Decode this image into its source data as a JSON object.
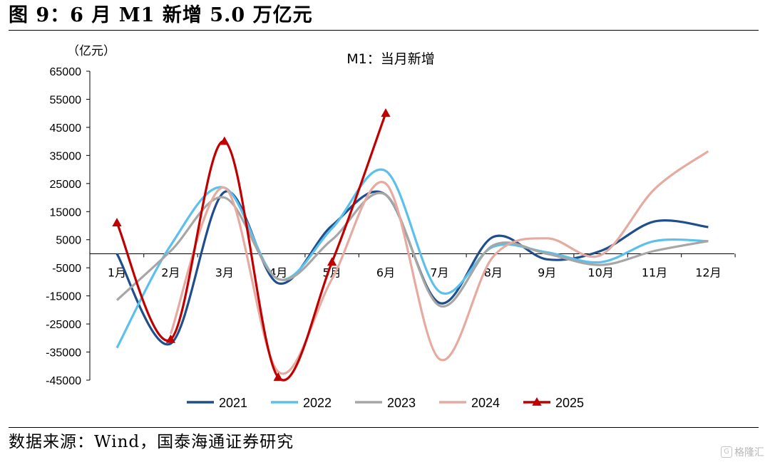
{
  "figure_title": "图 9：6 月 M1 新增 5.0 万亿元",
  "source_note": "数据来源：Wind，国泰海通证券研究",
  "watermark": "格隆汇",
  "chart_data": {
    "type": "line",
    "title": "M1：当月新增",
    "ylabel": "（亿元）",
    "xlabel": "",
    "ylim": [
      -45000,
      65000
    ],
    "yticks": [
      65000,
      55000,
      45000,
      35000,
      25000,
      15000,
      5000,
      -5000,
      -15000,
      -25000,
      -35000,
      -45000
    ],
    "categories": [
      "1月",
      "2月",
      "3月",
      "4月",
      "5月",
      "6月",
      "7月",
      "8月",
      "9月",
      "10月",
      "11月",
      "12月"
    ],
    "legend_position": "bottom",
    "grid": false,
    "series": [
      {
        "name": "2021",
        "color": "#1f4e8c",
        "marker": "none",
        "values": [
          0,
          -32000,
          22000,
          -10500,
          10000,
          21000,
          -17500,
          6000,
          -2000,
          1000,
          11500,
          9500
        ]
      },
      {
        "name": "2022",
        "color": "#5bc0eb",
        "marker": "none",
        "values": [
          -33500,
          3000,
          23500,
          -9000,
          9000,
          29500,
          -13500,
          2500,
          500,
          -3000,
          4500,
          4500
        ]
      },
      {
        "name": "2023",
        "color": "#a6a6a6",
        "marker": "none",
        "values": [
          -16500,
          1000,
          20000,
          -9000,
          5000,
          21000,
          -18500,
          3000,
          0,
          -4000,
          1000,
          4500
        ]
      },
      {
        "name": "2024",
        "color": "#e6aaa0",
        "marker": "none",
        "values": [
          null,
          -28500,
          23500,
          -42000,
          -9000,
          25000,
          -37500,
          -1000,
          5500,
          -500,
          23000,
          36500
        ]
      },
      {
        "name": "2025",
        "color": "#c00000",
        "marker": "triangle",
        "values": [
          11000,
          -30500,
          40000,
          -44000,
          -3000,
          50000,
          null,
          null,
          null,
          null,
          null,
          null
        ]
      }
    ]
  }
}
